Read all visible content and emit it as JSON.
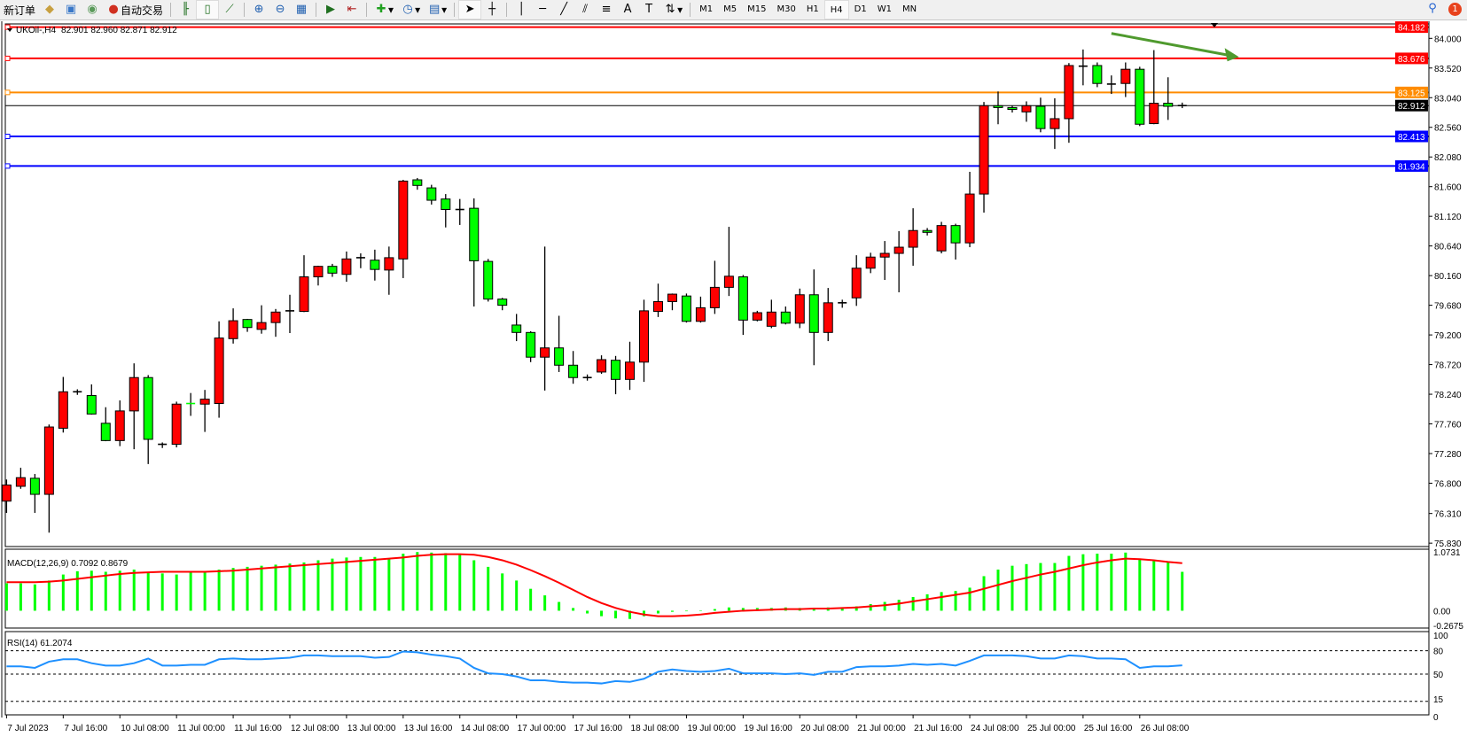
{
  "toolbar": {
    "new_order": "新订单",
    "auto_trading": "自动交易",
    "icons": [
      "history-center-icon",
      "market-watch-icon",
      "signals-icon",
      "auto-trading-icon",
      "bar-chart-icon",
      "candlestick-icon",
      "line-chart-icon",
      "zoom-in-icon",
      "zoom-out-icon",
      "tile-windows-icon",
      "auto-scroll-icon",
      "chart-shift-icon",
      "indicators-icon",
      "periods-icon",
      "templates-icon",
      "cursor-icon",
      "crosshair-icon",
      "vertical-line-icon",
      "horizontal-line-icon",
      "trendline-icon",
      "fibonacci-icon",
      "fibo-lines-icon",
      "text-icon",
      "text-label-icon",
      "arrows-icon"
    ],
    "timeframes": [
      "M1",
      "M5",
      "M15",
      "M30",
      "H1",
      "H4",
      "D1",
      "W1",
      "MN"
    ],
    "active_timeframe": "H4",
    "notification_count": "1"
  },
  "chart_header": {
    "symbol": "UKOil-,H4",
    "ohlc": "82.901 82.960 82.871 82.912"
  },
  "colors": {
    "bull": "#ff0000",
    "bear": "#00ff00",
    "macd_hist": "#00ff00",
    "signal": "#ff0000",
    "rsi": "#1e90ff",
    "arrow": "#4f9a2e"
  },
  "chart_data": {
    "type": "candlestick",
    "price_ticks": [
      "84.000",
      "83.520",
      "83.040",
      "82.560",
      "82.080",
      "81.600",
      "81.120",
      "80.640",
      "80.160",
      "79.680",
      "79.200",
      "78.720",
      "78.240",
      "77.760",
      "77.280",
      "76.800",
      "76.310",
      "75.830"
    ],
    "time_labels": [
      "7 Jul 2023",
      "7 Jul 16:00",
      "10 Jul 08:00",
      "11 Jul 00:00",
      "11 Jul 16:00",
      "12 Jul 08:00",
      "13 Jul 00:00",
      "13 Jul 16:00",
      "14 Jul 08:00",
      "17 Jul 00:00",
      "17 Jul 16:00",
      "18 Jul 08:00",
      "19 Jul 00:00",
      "19 Jul 16:00",
      "20 Jul 08:00",
      "21 Jul 00:00",
      "21 Jul 16:00",
      "24 Jul 08:00",
      "25 Jul 00:00",
      "25 Jul 16:00",
      "26 Jul 08:00"
    ],
    "ohlc": [
      [
        76.51,
        76.86,
        76.32,
        76.77
      ],
      [
        76.75,
        77.05,
        76.71,
        76.89
      ],
      [
        76.88,
        76.95,
        76.32,
        76.62
      ],
      [
        76.62,
        77.75,
        76.0,
        77.71
      ],
      [
        77.69,
        78.52,
        77.62,
        78.28
      ],
      [
        78.28,
        78.32,
        78.23,
        78.28
      ],
      [
        78.22,
        78.4,
        77.91,
        77.92
      ],
      [
        77.77,
        78.03,
        77.48,
        77.49
      ],
      [
        77.49,
        78.14,
        77.4,
        77.97
      ],
      [
        77.97,
        78.74,
        77.35,
        78.51
      ],
      [
        78.51,
        78.55,
        77.11,
        77.51
      ],
      [
        77.43,
        77.46,
        77.37,
        77.42
      ],
      [
        77.43,
        78.12,
        77.38,
        78.08
      ],
      [
        78.09,
        78.26,
        77.89,
        78.07
      ],
      [
        78.08,
        78.31,
        77.63,
        78.16
      ],
      [
        78.09,
        79.42,
        77.86,
        79.15
      ],
      [
        79.14,
        79.63,
        79.06,
        79.43
      ],
      [
        79.45,
        79.46,
        79.25,
        79.32
      ],
      [
        79.29,
        79.68,
        79.22,
        79.4
      ],
      [
        79.4,
        79.62,
        79.17,
        79.57
      ],
      [
        79.57,
        79.85,
        79.23,
        79.59
      ],
      [
        79.58,
        80.49,
        79.57,
        80.14
      ],
      [
        80.14,
        80.32,
        80.0,
        80.31
      ],
      [
        80.31,
        80.35,
        80.14,
        80.2
      ],
      [
        80.18,
        80.55,
        80.06,
        80.43
      ],
      [
        80.43,
        80.52,
        80.28,
        80.45
      ],
      [
        80.41,
        80.58,
        80.08,
        80.26
      ],
      [
        80.25,
        80.63,
        79.85,
        80.45
      ],
      [
        80.43,
        81.71,
        80.12,
        81.69
      ],
      [
        81.71,
        81.74,
        81.55,
        81.62
      ],
      [
        81.58,
        81.63,
        81.31,
        81.38
      ],
      [
        81.4,
        81.48,
        80.94,
        81.23
      ],
      [
        81.23,
        81.4,
        80.98,
        81.22
      ],
      [
        81.25,
        81.41,
        79.66,
        80.4
      ],
      [
        80.39,
        80.43,
        79.74,
        79.78
      ],
      [
        79.78,
        79.8,
        79.6,
        79.68
      ],
      [
        79.36,
        79.54,
        79.1,
        79.24
      ],
      [
        79.24,
        79.26,
        78.76,
        78.84
      ],
      [
        78.84,
        80.63,
        78.3,
        78.99
      ],
      [
        78.99,
        79.51,
        78.6,
        78.71
      ],
      [
        78.71,
        78.94,
        78.41,
        78.51
      ],
      [
        78.51,
        78.56,
        78.46,
        78.51
      ],
      [
        78.6,
        78.87,
        78.57,
        78.8
      ],
      [
        78.79,
        78.86,
        78.24,
        78.48
      ],
      [
        78.48,
        79.09,
        78.31,
        78.76
      ],
      [
        78.76,
        79.77,
        78.44,
        79.59
      ],
      [
        79.58,
        80.03,
        79.49,
        79.74
      ],
      [
        79.74,
        79.87,
        79.6,
        79.86
      ],
      [
        79.83,
        79.87,
        79.4,
        79.42
      ],
      [
        79.42,
        79.82,
        79.4,
        79.64
      ],
      [
        79.64,
        80.4,
        79.54,
        79.97
      ],
      [
        79.97,
        80.95,
        79.83,
        80.15
      ],
      [
        80.14,
        80.17,
        79.2,
        79.44
      ],
      [
        79.44,
        79.59,
        79.42,
        79.56
      ],
      [
        79.34,
        79.77,
        79.31,
        79.57
      ],
      [
        79.57,
        79.66,
        79.37,
        79.39
      ],
      [
        79.39,
        79.95,
        79.31,
        79.85
      ],
      [
        79.85,
        80.26,
        78.71,
        79.24
      ],
      [
        79.24,
        79.96,
        79.1,
        79.72
      ],
      [
        79.72,
        79.77,
        79.64,
        79.72
      ],
      [
        79.8,
        80.49,
        79.67,
        80.28
      ],
      [
        80.28,
        80.53,
        80.2,
        80.46
      ],
      [
        80.46,
        80.72,
        80.09,
        80.52
      ],
      [
        80.52,
        80.88,
        79.89,
        80.62
      ],
      [
        80.62,
        81.25,
        80.32,
        80.89
      ],
      [
        80.89,
        80.93,
        80.81,
        80.86
      ],
      [
        80.56,
        81.03,
        80.52,
        80.97
      ],
      [
        80.97,
        81.0,
        80.42,
        80.69
      ],
      [
        80.69,
        81.84,
        80.62,
        81.48
      ],
      [
        81.48,
        82.97,
        81.18,
        82.91
      ],
      [
        82.91,
        83.14,
        82.61,
        82.88
      ],
      [
        82.88,
        82.91,
        82.8,
        82.85
      ],
      [
        82.81,
        82.98,
        82.65,
        82.91
      ],
      [
        82.9,
        83.04,
        82.48,
        82.54
      ],
      [
        82.54,
        83.03,
        82.21,
        82.7
      ],
      [
        82.7,
        83.6,
        82.31,
        83.56
      ],
      [
        83.54,
        83.82,
        83.24,
        83.55
      ],
      [
        83.56,
        83.61,
        83.21,
        83.27
      ],
      [
        83.25,
        83.4,
        83.1,
        83.26
      ],
      [
        83.27,
        83.61,
        83.05,
        83.5
      ],
      [
        83.5,
        83.54,
        82.58,
        82.61
      ],
      [
        82.62,
        83.81,
        82.61,
        82.95
      ],
      [
        82.95,
        83.37,
        82.68,
        82.9
      ],
      [
        82.901,
        82.96,
        82.871,
        82.912
      ]
    ],
    "levels": [
      {
        "value": "84.182",
        "color": "#ff0000"
      },
      {
        "value": "83.676",
        "color": "#ff0000"
      },
      {
        "value": "83.125",
        "color": "#ff8c00"
      },
      {
        "value": "82.912",
        "color": "#000000"
      },
      {
        "value": "82.413",
        "color": "#0000ff"
      },
      {
        "value": "81.934",
        "color": "#0000ff"
      }
    ],
    "arrow_trendline": {
      "from": {
        "bar": 79,
        "price": 84.08
      },
      "to": {
        "bar": 88,
        "price": 83.7
      }
    },
    "macd": {
      "label": "MACD(12,26,9) 0.7092 0.8679",
      "axis": [
        "1.0731",
        "0.00",
        "-0.2675"
      ],
      "histogram": [
        0.5,
        0.5,
        0.48,
        0.55,
        0.66,
        0.72,
        0.73,
        0.71,
        0.73,
        0.75,
        0.7,
        0.68,
        0.66,
        0.7,
        0.7,
        0.75,
        0.78,
        0.8,
        0.82,
        0.84,
        0.86,
        0.88,
        0.92,
        0.95,
        0.97,
        0.98,
        0.98,
        0.96,
        1.04,
        1.07,
        1.06,
        1.05,
        1.02,
        0.92,
        0.8,
        0.68,
        0.55,
        0.4,
        0.28,
        0.16,
        0.05,
        -0.05,
        -0.1,
        -0.14,
        -0.15,
        -0.1,
        -0.05,
        -0.02,
        -0.01,
        0.0,
        0.03,
        0.06,
        0.05,
        0.05,
        0.05,
        0.06,
        0.05,
        0.05,
        0.06,
        0.06,
        0.08,
        0.12,
        0.16,
        0.2,
        0.25,
        0.3,
        0.34,
        0.36,
        0.42,
        0.63,
        0.75,
        0.82,
        0.85,
        0.87,
        0.87,
        1.0,
        1.03,
        1.04,
        1.04,
        1.06,
        0.93,
        0.92,
        0.9,
        0.7092
      ],
      "signal": [
        0.52,
        0.52,
        0.52,
        0.53,
        0.55,
        0.58,
        0.61,
        0.64,
        0.67,
        0.69,
        0.7,
        0.71,
        0.71,
        0.71,
        0.71,
        0.72,
        0.73,
        0.75,
        0.77,
        0.79,
        0.81,
        0.83,
        0.85,
        0.87,
        0.89,
        0.91,
        0.93,
        0.95,
        0.97,
        1.0,
        1.02,
        1.03,
        1.03,
        1.02,
        0.98,
        0.92,
        0.84,
        0.74,
        0.63,
        0.51,
        0.38,
        0.25,
        0.14,
        0.05,
        -0.02,
        -0.07,
        -0.1,
        -0.1,
        -0.09,
        -0.07,
        -0.04,
        -0.02,
        0.0,
        0.01,
        0.02,
        0.03,
        0.03,
        0.04,
        0.04,
        0.05,
        0.06,
        0.08,
        0.1,
        0.13,
        0.17,
        0.21,
        0.25,
        0.29,
        0.33,
        0.4,
        0.47,
        0.54,
        0.6,
        0.66,
        0.71,
        0.77,
        0.83,
        0.88,
        0.92,
        0.95,
        0.94,
        0.92,
        0.89,
        0.8679
      ],
      "range": [
        -0.2675,
        1.0731
      ]
    },
    "rsi": {
      "label": "RSI(14) 61.2074",
      "axis": [
        "100",
        "80",
        "50",
        "15",
        "0"
      ],
      "levels": [
        80,
        50,
        15
      ],
      "values": [
        60,
        60,
        58,
        66,
        69,
        69,
        64,
        61,
        61,
        64,
        70,
        61,
        61,
        62,
        62,
        69,
        70,
        69,
        69,
        70,
        71,
        74,
        74,
        73,
        73,
        73,
        71,
        72,
        79,
        78,
        75,
        73,
        70,
        58,
        51,
        50,
        47,
        42,
        42,
        40,
        39,
        39,
        38,
        41,
        40,
        44,
        53,
        56,
        54,
        53,
        54,
        57,
        51,
        51,
        51,
        50,
        51,
        49,
        53,
        53,
        59,
        60,
        60,
        61,
        63,
        62,
        63,
        61,
        67,
        74,
        74,
        74,
        73,
        70,
        70,
        74,
        73,
        70,
        70,
        69,
        58,
        60,
        60,
        61.2074
      ]
    }
  }
}
